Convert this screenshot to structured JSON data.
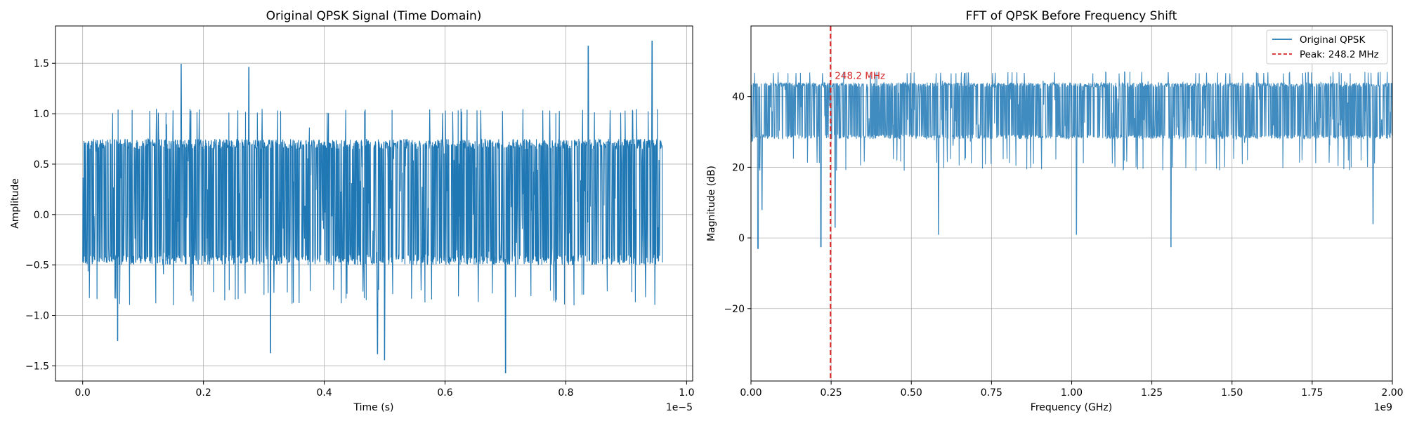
{
  "chart_data": [
    {
      "type": "line",
      "title": "Original QPSK Signal (Time Domain)",
      "xlabel": "Time (s)",
      "ylabel": "Amplitude",
      "x_offset_text": "1e−5",
      "xlim": [
        -0.045,
        1.01
      ],
      "ylim": [
        -1.65,
        1.87
      ],
      "x_ticks": [
        0.0,
        0.2,
        0.4,
        0.6,
        0.8,
        1.0
      ],
      "x_tick_labels": [
        "0.0",
        "0.2",
        "0.4",
        "0.6",
        "0.8",
        "1.0"
      ],
      "y_ticks": [
        -1.5,
        -1.0,
        -0.5,
        0.0,
        0.5,
        1.0,
        1.5
      ],
      "y_tick_labels": [
        "−1.5",
        "−1.0",
        "−0.5",
        "0.0",
        "0.5",
        "1.0",
        "1.5"
      ],
      "grid": true,
      "series": [
        {
          "color": "#1f77b4",
          "x_range": [
            0.0,
            0.96
          ],
          "core_band": [
            -0.5,
            0.75
          ],
          "typical_envelope": [
            -0.9,
            1.05
          ],
          "spikes": [
            {
              "x": 0.163,
              "y": 1.49
            },
            {
              "x": 0.275,
              "y": 1.46
            },
            {
              "x": 0.837,
              "y": 1.67
            },
            {
              "x": 0.943,
              "y": 1.72
            },
            {
              "x": 0.7,
              "y": -1.57
            },
            {
              "x": 0.311,
              "y": -1.37
            },
            {
              "x": 0.488,
              "y": -1.38
            },
            {
              "x": 0.5,
              "y": -1.44
            },
            {
              "x": 0.058,
              "y": -1.25
            }
          ]
        }
      ]
    },
    {
      "type": "line",
      "title": "FFT of QPSK Before Frequency Shift",
      "xlabel": "Frequency (GHz)",
      "ylabel": "Magnitude (dB)",
      "x_offset_text": "1e9",
      "xlim": [
        0.0,
        2.0
      ],
      "ylim": [
        -40.5,
        60
      ],
      "x_ticks": [
        0.0,
        0.25,
        0.5,
        0.75,
        1.0,
        1.25,
        1.5,
        1.75,
        2.0
      ],
      "x_tick_labels": [
        "0.00",
        "0.25",
        "0.50",
        "0.75",
        "1.00",
        "1.25",
        "1.50",
        "1.75",
        "2.00"
      ],
      "y_ticks": [
        -20,
        0,
        20,
        40
      ],
      "y_tick_labels": [
        "−20",
        "0",
        "20",
        "40"
      ],
      "grid": true,
      "legend_position": "top-right",
      "series": [
        {
          "name": "Original QPSK",
          "color": "#1f77b4",
          "x_range": [
            0.0,
            2.0
          ],
          "core_band": [
            28,
            44
          ],
          "typical_envelope": [
            19,
            47
          ],
          "dips": [
            {
              "x": 0.022,
              "y": -3
            },
            {
              "x": 0.034,
              "y": 8
            },
            {
              "x": 0.218,
              "y": -2.5
            },
            {
              "x": 0.262,
              "y": 3
            },
            {
              "x": 0.585,
              "y": 1
            },
            {
              "x": 1.015,
              "y": 1
            },
            {
              "x": 1.31,
              "y": -2.5
            },
            {
              "x": 1.94,
              "y": 4
            }
          ]
        }
      ],
      "reference_lines": [
        {
          "name": "Peak: 248.2 MHz",
          "x": 0.2482,
          "color": "#d62728",
          "style": "dashed"
        }
      ],
      "annotations": [
        {
          "text": "248.2 MHz",
          "x": 0.2482,
          "y": 45
        }
      ]
    }
  ]
}
